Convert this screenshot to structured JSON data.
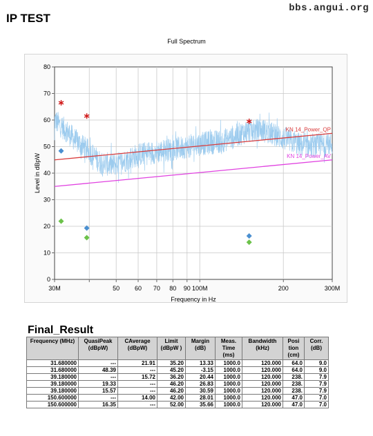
{
  "watermark": "bbs.angui.org",
  "page_title": "IP TEST",
  "chart_data": {
    "type": "scatter",
    "title": "Full Spectrum",
    "xlabel": "Frequency in Hz",
    "ylabel": "Level in dBpW",
    "xscale": "log",
    "xlim": [
      30,
      300
    ],
    "ylim": [
      0,
      80
    ],
    "x_ticks": [
      30,
      40,
      50,
      60,
      70,
      80,
      90,
      100,
      200,
      300
    ],
    "x_tick_labels": [
      "30M",
      "",
      "50",
      "60",
      "70",
      "80",
      "90",
      "100M",
      "200",
      "300M"
    ],
    "y_ticks": [
      0,
      10,
      20,
      30,
      40,
      50,
      60,
      70,
      80
    ],
    "y_tick_labels": [
      "0",
      "10",
      "20",
      "30",
      "40",
      "50",
      "60",
      "70",
      "80"
    ],
    "grid": true,
    "noise_baseline": [
      [
        30,
        60
      ],
      [
        33,
        56
      ],
      [
        36,
        52
      ],
      [
        40,
        48
      ],
      [
        44,
        44
      ],
      [
        48,
        43
      ],
      [
        52,
        44
      ],
      [
        60,
        47
      ],
      [
        70,
        48
      ],
      [
        80,
        49
      ],
      [
        90,
        50
      ],
      [
        100,
        51
      ],
      [
        120,
        52
      ],
      [
        150,
        56
      ],
      [
        170,
        56
      ],
      [
        200,
        53
      ],
      [
        240,
        50
      ],
      [
        300,
        51
      ]
    ],
    "limit_lines": [
      {
        "name": "KN 14_Power_QP",
        "color": "#d93a3a",
        "x": [
          30,
          300
        ],
        "y": [
          45,
          55
        ]
      },
      {
        "name": "KN 14_Power_AV",
        "color": "#e040e0",
        "x": [
          30,
          300
        ],
        "y": [
          35,
          45
        ]
      }
    ],
    "series": [
      {
        "color": "#d01818",
        "marker": "star",
        "x": [
          31.68,
          39.18,
          150.6
        ],
        "y": [
          66.5,
          61.5,
          59.5
        ]
      },
      {
        "color": "#4a8fd0",
        "marker": "diamond",
        "x": [
          31.68,
          39.18,
          150.6
        ],
        "y": [
          48.39,
          19.33,
          16.35
        ]
      },
      {
        "color": "#6cc24a",
        "marker": "diamond",
        "x": [
          31.68,
          39.18,
          150.6
        ],
        "y": [
          21.91,
          15.72,
          14.0
        ]
      }
    ],
    "spectrum_color": "#9ccbee"
  },
  "results": {
    "title": "Final_Result",
    "headers": [
      "Frequency (MHz)",
      "QuasiPeak (dBpW)",
      "CAverage (dBpW)",
      "Limit (dBpW )",
      "Margin (dB)",
      "Meas. Time (ms)",
      "Bandwidth (kHz)",
      "Posi tion (cm)",
      "Corr. (dB)"
    ],
    "rows": [
      [
        "31.680000",
        "---",
        "21.91",
        "35.20",
        "13.33",
        "1000.0",
        "120.000",
        "64.0",
        "9.0"
      ],
      [
        "31.680000",
        "48.39",
        "---",
        "45.20",
        "-3.15",
        "1000.0",
        "120.000",
        "64.0",
        "9.0"
      ],
      [
        "39.180000",
        "---",
        "15.72",
        "36.20",
        "20.44",
        "1000.0",
        "120.000",
        "238.",
        "7.9"
      ],
      [
        "39.180000",
        "19.33",
        "---",
        "46.20",
        "26.83",
        "1000.0",
        "120.000",
        "238.",
        "7.9"
      ],
      [
        "39.180000",
        "15.57",
        "---",
        "46.20",
        "30.59",
        "1000.0",
        "120.000",
        "238.",
        "7.9"
      ],
      [
        "150.600000",
        "---",
        "14.00",
        "42.00",
        "28.01",
        "1000.0",
        "120.000",
        "47.0",
        "7.0"
      ],
      [
        "150.600000",
        "16.35",
        "---",
        "52.00",
        "35.66",
        "1000.0",
        "120.000",
        "47.0",
        "7.0"
      ]
    ]
  }
}
